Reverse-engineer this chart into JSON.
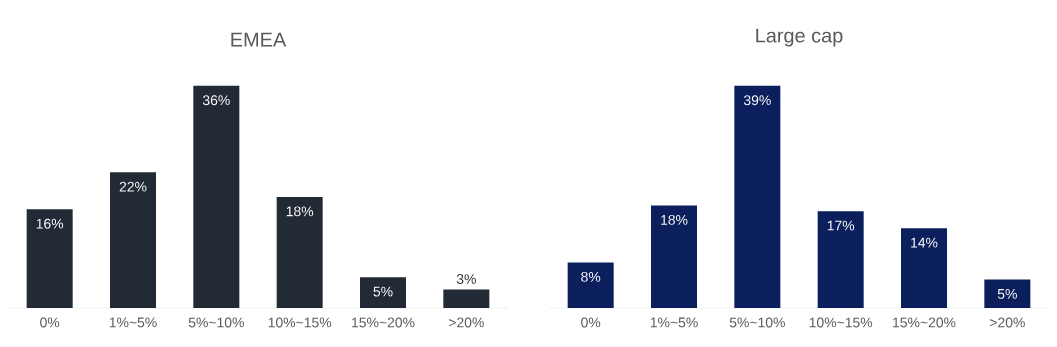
{
  "chart_data": [
    {
      "type": "bar",
      "title": "EMEA",
      "categories": [
        "0%",
        "1%~5%",
        "5%~10%",
        "10%~15%",
        "15%~20%",
        ">20%"
      ],
      "values": [
        16,
        22,
        36,
        18,
        5,
        3
      ],
      "value_labels": [
        "16%",
        "22%",
        "36%",
        "18%",
        "5%",
        "3%"
      ],
      "color": "#222a35"
    },
    {
      "type": "bar",
      "title": "Large cap",
      "categories": [
        "0%",
        "1%~5%",
        "5%~10%",
        "10%~15%",
        "15%~20%",
        ">20%"
      ],
      "values": [
        8,
        18,
        39,
        17,
        14,
        5
      ],
      "value_labels": [
        "8%",
        "18%",
        "39%",
        "17%",
        "14%",
        "5%"
      ],
      "color": "#0b1f5c"
    }
  ]
}
